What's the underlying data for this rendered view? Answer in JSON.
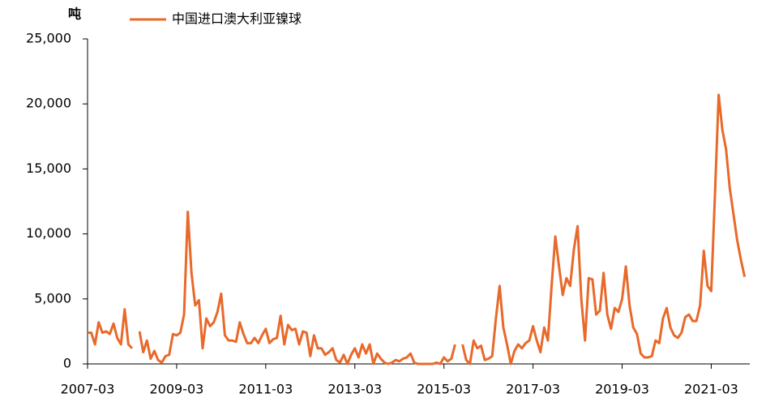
{
  "chart_data": {
    "type": "line",
    "y_label": "吨",
    "categories": [
      "2007-03",
      null,
      null,
      null,
      null,
      null,
      null,
      null,
      null,
      null,
      null,
      null,
      null,
      null,
      null,
      null,
      null,
      null,
      null,
      null,
      null,
      null,
      null,
      null,
      "2009-03",
      null,
      null,
      null,
      null,
      null,
      null,
      null,
      null,
      null,
      null,
      null,
      null,
      null,
      null,
      null,
      null,
      null,
      null,
      null,
      null,
      null,
      null,
      null,
      "2011-03",
      null,
      null,
      null,
      null,
      null,
      null,
      null,
      null,
      null,
      null,
      null,
      null,
      null,
      null,
      null,
      null,
      null,
      null,
      null,
      null,
      null,
      null,
      null,
      "2013-03",
      null,
      null,
      null,
      null,
      null,
      null,
      null,
      null,
      null,
      null,
      null,
      null,
      null,
      null,
      null,
      null,
      null,
      null,
      null,
      null,
      null,
      null,
      null,
      "2015-03",
      null,
      null,
      null,
      null,
      null,
      null,
      null,
      null,
      null,
      null,
      null,
      null,
      null,
      null,
      null,
      null,
      null,
      null,
      null,
      null,
      null,
      null,
      null,
      "2017-03",
      null,
      null,
      null,
      null,
      null,
      null,
      null,
      null,
      null,
      null,
      null,
      null,
      null,
      null,
      null,
      null,
      null,
      null,
      null,
      null,
      null,
      null,
      null,
      "2019-03",
      null,
      null,
      null,
      null,
      null,
      null,
      null,
      null,
      null,
      null,
      null,
      null,
      null,
      null,
      null,
      null,
      null,
      null,
      null,
      null,
      null,
      null,
      null,
      "2021-03",
      null,
      null,
      null,
      null,
      null,
      null,
      null,
      null,
      null
    ],
    "series": [
      {
        "name": "中国进口澳大利亚镍球",
        "color": "#e8692a",
        "values": [
          2400,
          2400,
          1500,
          3200,
          2400,
          2500,
          2300,
          3100,
          2000,
          1500,
          4200,
          1500,
          1200,
          null,
          2500,
          900,
          1800,
          400,
          1000,
          300,
          100,
          600,
          700,
          2300,
          2200,
          2400,
          3800,
          11700,
          7000,
          4500,
          4900,
          1200,
          3500,
          2900,
          3200,
          4000,
          5400,
          2200,
          1800,
          1800,
          1700,
          3200,
          2300,
          1600,
          1600,
          2000,
          1600,
          2200,
          2700,
          1600,
          1900,
          2000,
          3700,
          1500,
          3000,
          2600,
          2700,
          1500,
          2500,
          2400,
          600,
          2200,
          1200,
          1200,
          700,
          900,
          1200,
          300,
          100,
          700,
          0,
          700,
          1200,
          500,
          1500,
          800,
          1500,
          0,
          800,
          400,
          100,
          0,
          100,
          300,
          200,
          400,
          500,
          800,
          100,
          0,
          0,
          0,
          0,
          0,
          100,
          0,
          500,
          200,
          400,
          1500,
          null,
          1500,
          300,
          0,
          1800,
          1200,
          1400,
          300,
          400,
          600,
          3500,
          6000,
          2800,
          1500,
          0,
          1000,
          1500,
          1200,
          1600,
          1800,
          2900,
          1800,
          900,
          2800,
          1800,
          6000,
          9800,
          7500,
          5300,
          6600,
          6000,
          8800,
          10600,
          5000,
          1800,
          6600,
          6500,
          3800,
          4100,
          7000,
          3800,
          2700,
          4300,
          4000,
          5000,
          7500,
          4500,
          2800,
          2300,
          800,
          500,
          500,
          600,
          1800,
          1600,
          3500,
          4300,
          2800,
          2200,
          2000,
          2400,
          3600,
          3800,
          3300,
          3300,
          4500,
          8700,
          6000,
          5600,
          13000,
          20700,
          18000,
          16500,
          13500,
          11500,
          9500,
          8000,
          6700
        ]
      }
    ],
    "ylim": [
      0,
      25000
    ],
    "yticks": [
      0,
      {
        "value": 5000,
        "label": "5,000"
      },
      {
        "value": 10000,
        "label": "10,000"
      },
      {
        "value": 15000,
        "label": "15,000"
      },
      {
        "value": 20000,
        "label": "20,000"
      },
      {
        "value": 25000,
        "label": "25,000"
      }
    ],
    "grid": false
  }
}
